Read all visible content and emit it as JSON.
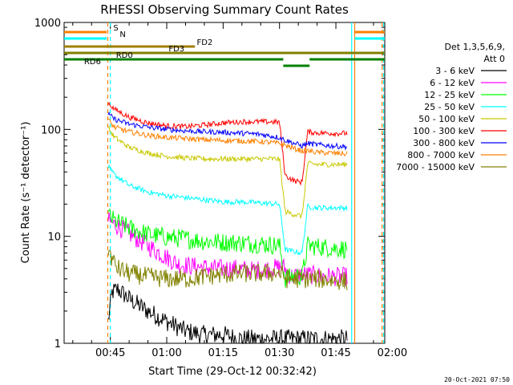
{
  "chart_data": {
    "type": "line",
    "title": "RHESSI Observing Summary Count Rates",
    "xlabel": "Start Time (29-Oct-12 00:32:42)",
    "ylabel": "Count Rate (s⁻¹ detector⁻¹)",
    "yscale": "log",
    "ylim": [
      1,
      1000
    ],
    "xlim_minutes": [
      32.7,
      118
    ],
    "xtick_labels": [
      "00:45",
      "01:00",
      "01:15",
      "01:30",
      "01:45",
      "02:00"
    ],
    "xtick_minutes": [
      45,
      60,
      75,
      90,
      105,
      120
    ],
    "ytick_labels": [
      "1",
      "10",
      "100",
      "1000"
    ],
    "ytick_values": [
      1,
      10,
      100,
      1000
    ],
    "legend_header": [
      "Det 1,3,5,6,9,",
      "Att 0"
    ],
    "legend_position": "right",
    "footer_timestamp": "20-Oct-2021 07:50",
    "series": [
      {
        "name": "3 - 6 keV",
        "color": "#000000",
        "values": [
          [
            44.3,
            1.5
          ],
          [
            45.5,
            3.0
          ],
          [
            47,
            3.2
          ],
          [
            50,
            2.6
          ],
          [
            55,
            2.0
          ],
          [
            60,
            1.6
          ],
          [
            65,
            1.3
          ],
          [
            70,
            1.2
          ],
          [
            75,
            1.2
          ],
          [
            80,
            1.1
          ],
          [
            85,
            1.1
          ],
          [
            90,
            1.1
          ],
          [
            95,
            1.1
          ],
          [
            100,
            1.1
          ],
          [
            105,
            1.1
          ],
          [
            108,
            1.1
          ]
        ]
      },
      {
        "name": "6 - 12 keV",
        "color": "#ff00ff",
        "values": [
          [
            44.3,
            14
          ],
          [
            47,
            12.5
          ],
          [
            52,
            9.5
          ],
          [
            58,
            7.0
          ],
          [
            63,
            5.5
          ],
          [
            68,
            5.2
          ],
          [
            73,
            5.0
          ],
          [
            78,
            5.0
          ],
          [
            83,
            4.8
          ],
          [
            88,
            5.0
          ],
          [
            91,
            5.2
          ],
          [
            93,
            4.2
          ],
          [
            96,
            4.4
          ],
          [
            100,
            4.3
          ],
          [
            104,
            4.2
          ],
          [
            108,
            4.2
          ]
        ]
      },
      {
        "name": "12 - 25 keV",
        "color": "#00ff00",
        "values": [
          [
            44.3,
            16
          ],
          [
            46,
            14
          ],
          [
            50,
            12
          ],
          [
            55,
            10.5
          ],
          [
            60,
            9.8
          ],
          [
            65,
            9.5
          ],
          [
            70,
            9.0
          ],
          [
            75,
            8.8
          ],
          [
            80,
            8.7
          ],
          [
            85,
            8.5
          ],
          [
            90,
            8.2
          ],
          [
            91.5,
            4.0
          ],
          [
            94,
            4.3
          ],
          [
            96,
            4.2
          ],
          [
            97.5,
            8.2
          ],
          [
            100,
            8.0
          ],
          [
            104,
            7.8
          ],
          [
            108,
            7.6
          ]
        ]
      },
      {
        "name": "25 - 50 keV",
        "color": "#00ffff",
        "values": [
          [
            44.3,
            45
          ],
          [
            46,
            38
          ],
          [
            50,
            30
          ],
          [
            55,
            26
          ],
          [
            60,
            24
          ],
          [
            65,
            23
          ],
          [
            70,
            22
          ],
          [
            75,
            21
          ],
          [
            80,
            21
          ],
          [
            85,
            20.5
          ],
          [
            90,
            20
          ],
          [
            91.5,
            7.5
          ],
          [
            94,
            7.2
          ],
          [
            96,
            7.0
          ],
          [
            97.5,
            19
          ],
          [
            100,
            18.5
          ],
          [
            104,
            18.5
          ],
          [
            108,
            18.5
          ]
        ]
      },
      {
        "name": "50 - 100 keV",
        "color": "#c8c800",
        "values": [
          [
            44.3,
            105
          ],
          [
            46,
            85
          ],
          [
            50,
            68
          ],
          [
            55,
            60
          ],
          [
            60,
            56
          ],
          [
            65,
            54
          ],
          [
            70,
            53
          ],
          [
            75,
            53
          ],
          [
            80,
            53
          ],
          [
            85,
            53
          ],
          [
            90,
            53
          ],
          [
            91.5,
            17
          ],
          [
            94,
            16
          ],
          [
            96,
            15.5
          ],
          [
            97.5,
            48
          ],
          [
            100,
            47
          ],
          [
            104,
            47
          ],
          [
            108,
            47
          ]
        ]
      },
      {
        "name": "100 - 300 keV",
        "color": "#ff0000",
        "values": [
          [
            44.3,
            180
          ],
          [
            46,
            155
          ],
          [
            50,
            130
          ],
          [
            55,
            115
          ],
          [
            60,
            108
          ],
          [
            65,
            106
          ],
          [
            70,
            110
          ],
          [
            75,
            115
          ],
          [
            80,
            118
          ],
          [
            85,
            118
          ],
          [
            90,
            117
          ],
          [
            91.5,
            37
          ],
          [
            94,
            33
          ],
          [
            96,
            32
          ],
          [
            97.5,
            95
          ],
          [
            100,
            93
          ],
          [
            104,
            92
          ],
          [
            108,
            92
          ]
        ]
      },
      {
        "name": "300 - 800 keV",
        "color": "#0000ff",
        "values": [
          [
            44.3,
            140
          ],
          [
            46,
            125
          ],
          [
            50,
            112
          ],
          [
            55,
            105
          ],
          [
            60,
            100
          ],
          [
            65,
            97
          ],
          [
            70,
            95
          ],
          [
            75,
            94
          ],
          [
            80,
            92
          ],
          [
            85,
            90
          ],
          [
            90,
            84
          ],
          [
            92,
            78
          ],
          [
            94,
            74
          ],
          [
            96,
            70
          ],
          [
            97.5,
            74
          ],
          [
            100,
            72
          ],
          [
            104,
            70
          ],
          [
            108,
            69
          ]
        ]
      },
      {
        "name": "800 - 7000 keV",
        "color": "#ff8000",
        "values": [
          [
            44.3,
            125
          ],
          [
            46,
            105
          ],
          [
            50,
            95
          ],
          [
            55,
            88
          ],
          [
            60,
            84
          ],
          [
            65,
            82
          ],
          [
            70,
            80
          ],
          [
            75,
            79
          ],
          [
            80,
            78
          ],
          [
            85,
            77
          ],
          [
            90,
            74
          ],
          [
            92,
            70
          ],
          [
            94,
            66
          ],
          [
            96,
            63
          ],
          [
            97.5,
            63
          ],
          [
            100,
            61
          ],
          [
            104,
            60
          ],
          [
            108,
            59
          ]
        ]
      },
      {
        "name": "7000 - 15000 keV",
        "color": "#808000",
        "values": [
          [
            44.3,
            8.0
          ],
          [
            45.5,
            6.0
          ],
          [
            47,
            5.0
          ],
          [
            50,
            4.5
          ],
          [
            55,
            4.2
          ],
          [
            60,
            4.0
          ],
          [
            65,
            4.0
          ],
          [
            70,
            4.2
          ],
          [
            75,
            4.4
          ],
          [
            80,
            4.5
          ],
          [
            85,
            4.5
          ],
          [
            90,
            4.6
          ],
          [
            92,
            4.0
          ],
          [
            96,
            4.0
          ],
          [
            100,
            4.0
          ],
          [
            104,
            3.9
          ],
          [
            108,
            3.8
          ]
        ]
      }
    ],
    "status_bars": [
      {
        "label": "S",
        "color": "#ff8000",
        "segments": [
          [
            32.7,
            44.0
          ],
          [
            110.0,
            118.0
          ]
        ],
        "label_minute": 45.8
      },
      {
        "label": "N",
        "color": "#00ffff",
        "segments": [
          [
            32.7,
            44.0
          ],
          [
            110.0,
            118.0
          ]
        ],
        "label_minute": 47.5
      },
      {
        "label": "FD2",
        "color": "#a08000",
        "segments": [
          [
            32.7,
            67.5
          ]
        ],
        "label_minute": 68.0
      },
      {
        "label": "FD3",
        "color": "#808000",
        "segments": [
          [
            32.7,
            118.0
          ]
        ],
        "label_minute": 60.5
      },
      {
        "label": "RD0",
        "color": "#008000",
        "segments": [
          [
            32.7,
            91.0
          ],
          [
            98.0,
            118.0
          ]
        ],
        "label_minute": 46.5
      },
      {
        "label": "RD6",
        "color": "#008000",
        "segments": [
          [
            91.0,
            98.0
          ]
        ],
        "label_minute": 38.0
      }
    ],
    "vertical_markers": [
      {
        "minute": 44.3,
        "color": "#ff8000",
        "style": "dashed"
      },
      {
        "minute": 45.0,
        "color": "#00ffff",
        "style": "dashed"
      },
      {
        "minute": 109.2,
        "color": "#00ffff",
        "style": "solid"
      },
      {
        "minute": 110.0,
        "color": "#ff8000",
        "style": "solid"
      },
      {
        "minute": 117.3,
        "color": "#ff8000",
        "style": "dashed"
      },
      {
        "minute": 117.7,
        "color": "#00ffff",
        "style": "dashed"
      }
    ]
  }
}
